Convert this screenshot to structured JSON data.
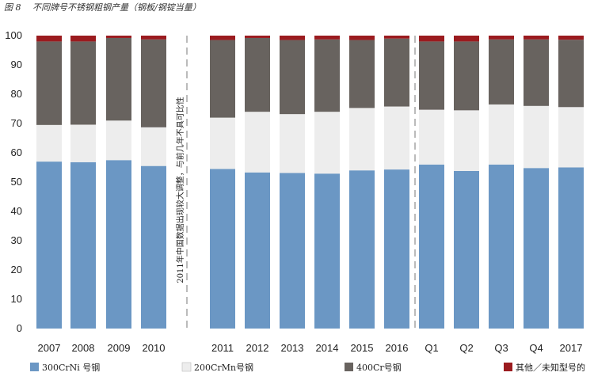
{
  "figure_label": "图 8",
  "chart_data": {
    "type": "bar",
    "stacked": true,
    "title": "不同牌号不锈钢粗钢产量（钢板/钢锭当量）",
    "xlabel": "",
    "ylabel": "",
    "ylim": [
      0,
      100
    ],
    "yticks": [
      0,
      10,
      20,
      30,
      40,
      50,
      60,
      70,
      80,
      90,
      100
    ],
    "grid": false,
    "legend_position": "bottom",
    "categories": [
      "2007",
      "2008",
      "2009",
      "2010",
      "2011",
      "2012",
      "2013",
      "2014",
      "2015",
      "2016",
      "Q1",
      "Q2",
      "Q3",
      "Q4",
      "2017"
    ],
    "series": [
      {
        "name": "300CrNi 号钢",
        "color": "#6b97c4",
        "values": [
          57,
          56.8,
          57.5,
          55.5,
          54.5,
          53.3,
          53.1,
          52.9,
          54,
          54.3,
          56,
          53.8,
          56,
          54.8,
          55
        ]
      },
      {
        "name": "200CrMn号钢",
        "color": "#ededed",
        "values": [
          12.5,
          12.8,
          13.5,
          13.2,
          17.5,
          20.7,
          20.1,
          21.1,
          21.3,
          21.5,
          18.7,
          20.7,
          20.5,
          21.2,
          20.6
        ]
      },
      {
        "name": "400Cr号钢",
        "color": "#68635f",
        "values": [
          28.5,
          28.4,
          28.2,
          30,
          26.5,
          25.2,
          25.3,
          24.7,
          23.2,
          23.2,
          23.3,
          23.5,
          22.2,
          22.7,
          23
        ]
      },
      {
        "name": "其他／未知型号的",
        "color": "#9b1b1f",
        "values": [
          2,
          2,
          0.8,
          1.3,
          1.5,
          0.8,
          1.5,
          1.3,
          1.5,
          1,
          2,
          2,
          1.3,
          1.3,
          1.4
        ]
      }
    ],
    "annotation": "2011年中国数据出现较大调整，与前几年不具可比性"
  }
}
